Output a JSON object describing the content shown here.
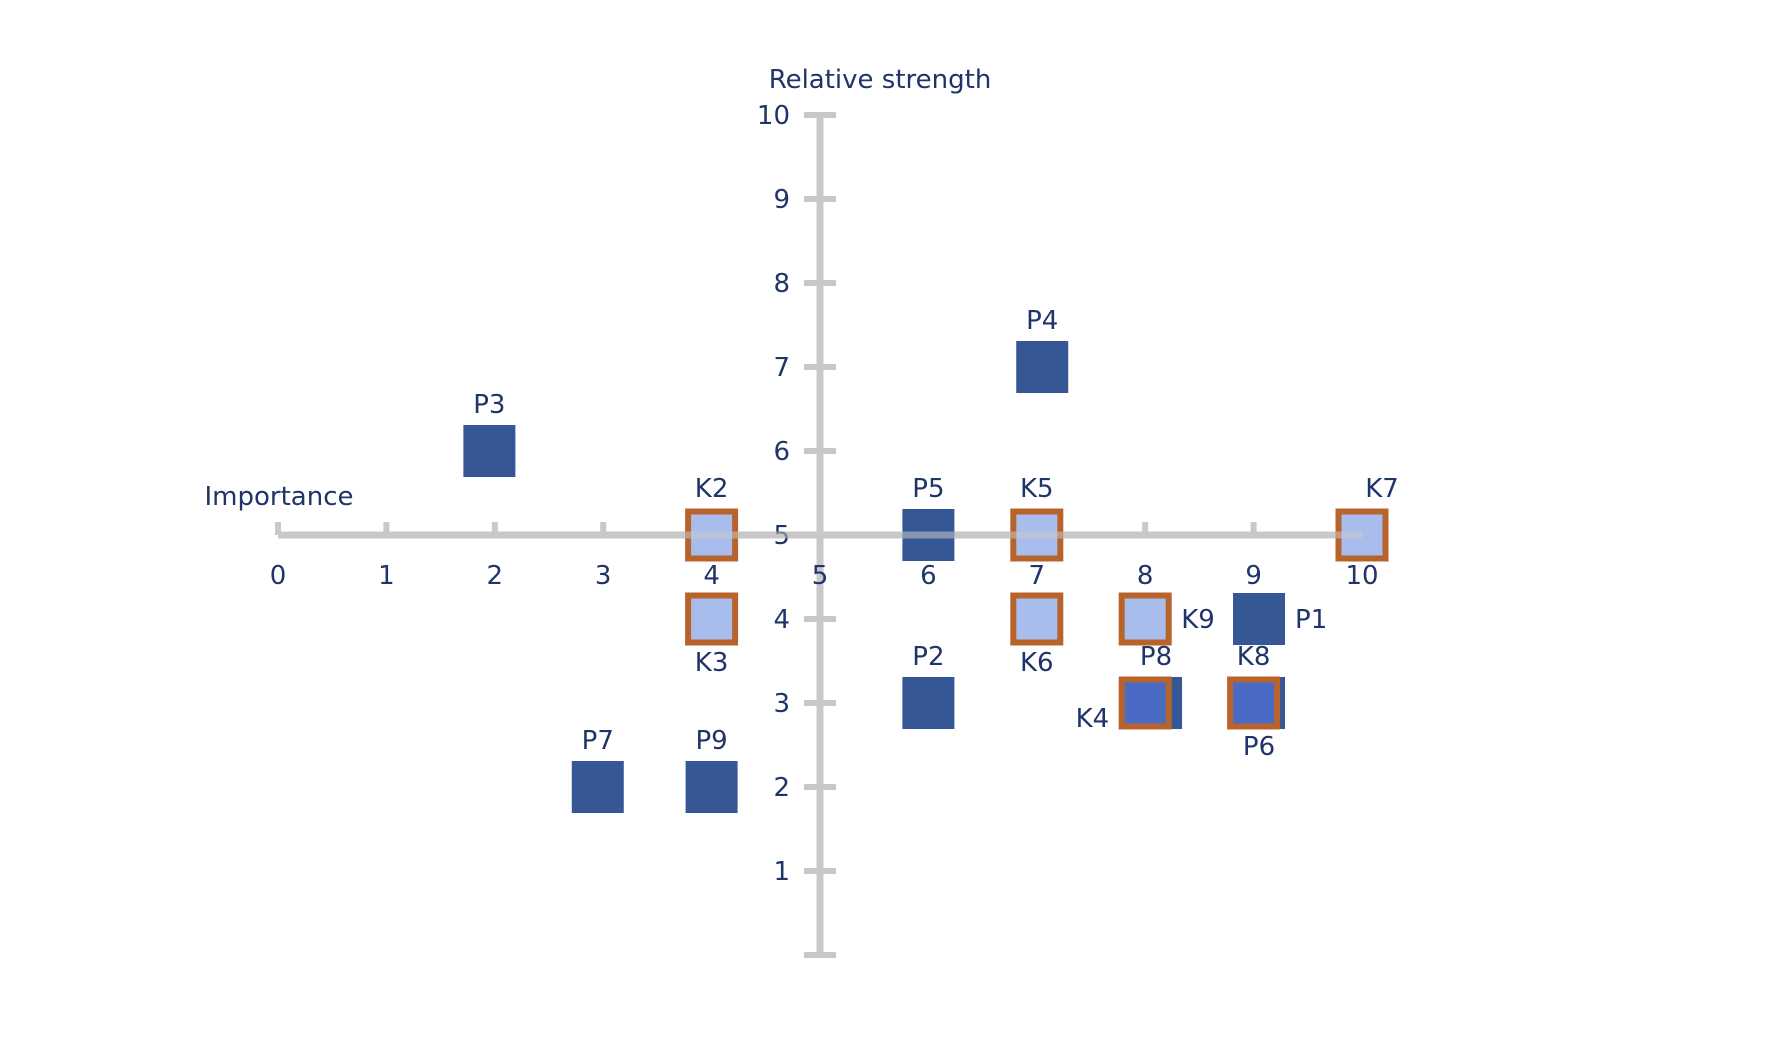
{
  "chart_data": {
    "type": "scatter",
    "x_axis": {
      "label": "Importance",
      "range": [
        0,
        10
      ],
      "ticks": [
        "0",
        "1",
        "2",
        "3",
        "4",
        "5",
        "6",
        "7",
        "8",
        "9",
        "10"
      ],
      "crosses_y_at": 5
    },
    "y_axis": {
      "label": "Relative strength",
      "range": [
        0,
        10
      ],
      "ticks": [
        "1",
        "2",
        "3",
        "4",
        "5",
        "6",
        "7",
        "8",
        "9",
        "10"
      ],
      "crosses_x_at": 5
    },
    "grid": false,
    "series": [
      {
        "style": "solid",
        "points": [
          {
            "label": "P1",
            "x": 9.05,
            "y": 4,
            "label_pos": "right"
          },
          {
            "label": "P2",
            "x": 6,
            "y": 3,
            "label_pos": "above"
          },
          {
            "label": "P3",
            "x": 1.95,
            "y": 6,
            "label_pos": "above"
          },
          {
            "label": "P4",
            "x": 7.05,
            "y": 7,
            "label_pos": "above"
          },
          {
            "label": "P5",
            "x": 6,
            "y": 5,
            "label_pos": "above"
          },
          {
            "label": "P6",
            "x": 9.05,
            "y": 3,
            "label_pos": "below"
          },
          {
            "label": "P7",
            "x": 2.95,
            "y": 2,
            "label_pos": "above"
          },
          {
            "label": "P8",
            "x": 8.1,
            "y": 3,
            "label_pos": "above"
          },
          {
            "label": "P9",
            "x": 4,
            "y": 2,
            "label_pos": "above"
          }
        ]
      },
      {
        "style": "outlined",
        "points": [
          {
            "label": "K2",
            "x": 4,
            "y": 5,
            "label_pos": "above"
          },
          {
            "label": "K3",
            "x": 4,
            "y": 4,
            "label_pos": "below"
          },
          {
            "label": "K4",
            "x": 8,
            "y": 3,
            "label_pos": "left"
          },
          {
            "label": "K5",
            "x": 7,
            "y": 5,
            "label_pos": "above"
          },
          {
            "label": "K6",
            "x": 7,
            "y": 4,
            "label_pos": "below"
          },
          {
            "label": "K7",
            "x": 10,
            "y": 5,
            "label_pos": "above-right"
          },
          {
            "label": "K8",
            "x": 9,
            "y": 3,
            "label_pos": "above"
          },
          {
            "label": "K9",
            "x": 8,
            "y": 4,
            "label_pos": "right"
          }
        ]
      }
    ],
    "colors": {
      "solid_fill": "#365796",
      "outlined_fill": "#a9bdec",
      "outlined_fill_overlap": "#4a6bc4",
      "outlined_stroke": "#b8632c",
      "axis": "#c8c8c8",
      "text": "#1f3469"
    }
  }
}
